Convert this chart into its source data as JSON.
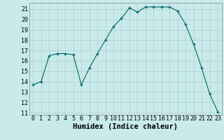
{
  "x": [
    0,
    1,
    2,
    3,
    4,
    5,
    6,
    7,
    8,
    9,
    10,
    11,
    12,
    13,
    14,
    15,
    16,
    17,
    18,
    19,
    20,
    21,
    22,
    23
  ],
  "y": [
    13.7,
    14.0,
    16.5,
    16.7,
    16.7,
    16.6,
    13.7,
    15.3,
    16.7,
    18.0,
    19.3,
    20.1,
    21.1,
    20.7,
    21.2,
    21.2,
    21.2,
    21.2,
    20.8,
    19.5,
    17.6,
    15.3,
    12.8,
    11.1
  ],
  "xlabel": "Humidex (Indice chaleur)",
  "ylim": [
    10.8,
    21.6
  ],
  "xlim": [
    -0.5,
    23.5
  ],
  "yticks": [
    11,
    12,
    13,
    14,
    15,
    16,
    17,
    18,
    19,
    20,
    21
  ],
  "xticks": [
    0,
    1,
    2,
    3,
    4,
    5,
    6,
    7,
    8,
    9,
    10,
    11,
    12,
    13,
    14,
    15,
    16,
    17,
    18,
    19,
    20,
    21,
    22,
    23
  ],
  "line_color": "#006666",
  "marker_color": "#006666",
  "bg_color": "#c8eaea",
  "grid_color": "#b0cfcf",
  "xlabel_fontsize": 7.5,
  "tick_fontsize": 6.0
}
